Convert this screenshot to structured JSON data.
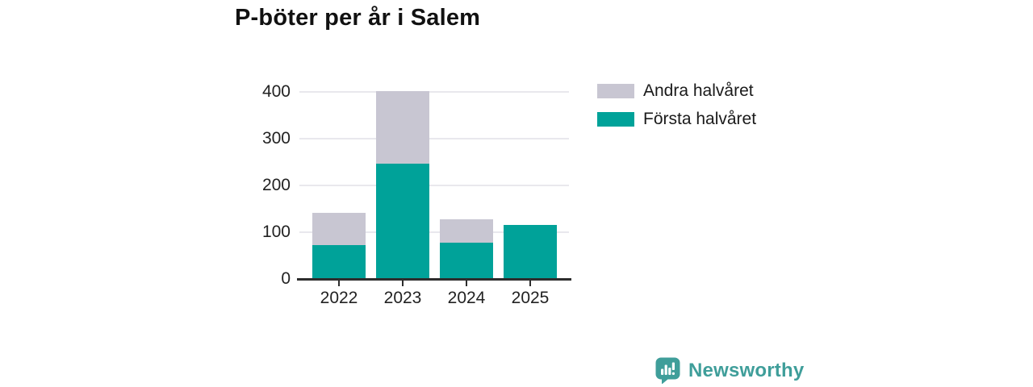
{
  "title": "P-böter per år i Salem",
  "chart_data": {
    "type": "bar",
    "stacked": true,
    "categories": [
      "2022",
      "2023",
      "2024",
      "2025"
    ],
    "series": [
      {
        "name": "Första halvåret",
        "color": "#00a299",
        "values": [
          72,
          246,
          78,
          116
        ]
      },
      {
        "name": "Andra halvåret",
        "color": "#c8c6d2",
        "values": [
          70,
          155,
          49,
          0
        ]
      }
    ],
    "title": "P-böter per år i Salem",
    "xlabel": "",
    "ylabel": "",
    "ylim": [
      0,
      400
    ],
    "yticks": [
      0,
      100,
      200,
      300,
      400
    ],
    "grid": true,
    "legend_position": "top-right"
  },
  "legend": {
    "items": [
      {
        "label": "Andra halvåret",
        "color": "#c8c6d2"
      },
      {
        "label": "Första halvåret",
        "color": "#00a299"
      }
    ]
  },
  "branding": {
    "logo_text": "Newsworthy",
    "logo_icon": "newsworthy-bar-chart-speech-bubble-icon",
    "logo_color": "#3f9e9a"
  },
  "colors": {
    "first_half": "#00a299",
    "second_half": "#c8c6d2",
    "gridline": "#e9e8ed",
    "axis_line": "#2d2d2d",
    "text": "#1a1a1a"
  }
}
